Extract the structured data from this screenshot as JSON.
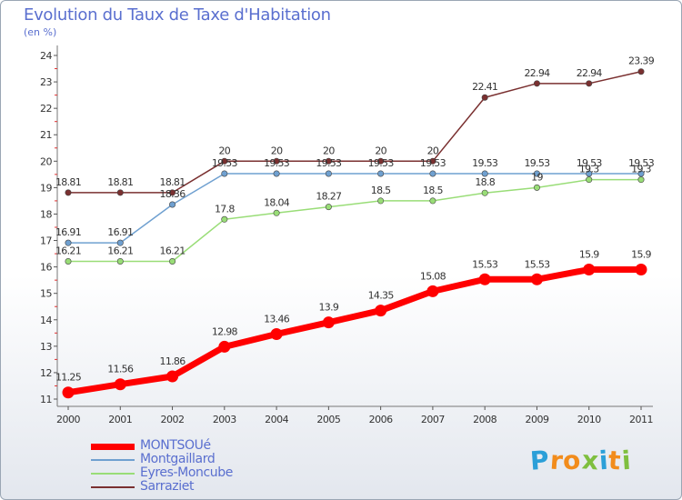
{
  "chart_data": {
    "type": "line",
    "title": "Evolution du Taux de Taxe d'Habitation",
    "subtitle": "(en %)",
    "xlabel": "",
    "ylabel": "",
    "x": [
      "2000",
      "2001",
      "2002",
      "2003",
      "2004",
      "2005",
      "2006",
      "2007",
      "2008",
      "2009",
      "2010",
      "2011"
    ],
    "ylim": [
      11,
      24
    ],
    "yticks": [
      11,
      12,
      13,
      14,
      15,
      16,
      17,
      18,
      19,
      20,
      21,
      22,
      23,
      24
    ],
    "grid": false,
    "legend_position": "bottom-left",
    "series": [
      {
        "name": "MONTSOUé",
        "color": "#ff0000",
        "values": [
          11.25,
          11.56,
          11.86,
          12.98,
          13.46,
          13.9,
          14.35,
          15.08,
          15.53,
          15.53,
          15.9,
          15.9
        ],
        "labels": [
          "11.25",
          "11.56",
          "11.86",
          "12.98",
          "13.46",
          "13.9",
          "14.35",
          "15.08",
          "15.53",
          "15.53",
          "15.9",
          "15.9"
        ]
      },
      {
        "name": "Montgaillard",
        "color": "#6fa0d0",
        "values": [
          16.91,
          16.91,
          18.36,
          19.53,
          19.53,
          19.53,
          19.53,
          19.53,
          19.53,
          19.53,
          19.53,
          19.53
        ],
        "labels": [
          "16.91",
          "16.91",
          "18.36",
          "19.53",
          "19.53",
          "19.53",
          "19.53",
          "19.53",
          "19.53",
          "19.53",
          "19.53",
          "19.53"
        ]
      },
      {
        "name": "Eyres-Moncube",
        "color": "#99dd77",
        "values": [
          16.21,
          16.21,
          16.21,
          17.8,
          18.04,
          18.27,
          18.5,
          18.5,
          18.8,
          19,
          19.3,
          19.3
        ],
        "labels": [
          "16.21",
          "16.21",
          "16.21",
          "17.8",
          "18.04",
          "18.27",
          "18.5",
          "18.5",
          "18.8",
          "19",
          "19.3",
          "19.3"
        ]
      },
      {
        "name": "Sarraziet",
        "color": "#7a3030",
        "values": [
          18.81,
          18.81,
          18.81,
          20,
          20,
          20,
          20,
          20,
          22.41,
          22.94,
          22.94,
          23.39
        ],
        "labels": [
          "18.81",
          "18.81",
          "18.81",
          "20",
          "20",
          "20",
          "20",
          "20",
          "22.41",
          "22.94",
          "22.94",
          "23.39"
        ]
      }
    ]
  },
  "logo": {
    "letters": [
      "P",
      "r",
      "o",
      "x",
      "i",
      "t",
      "i"
    ],
    "colors": [
      "#2b9fd8",
      "#f28c1c",
      "#f28c1c",
      "#7fbf3f",
      "#2b9fd8",
      "#f28c1c",
      "#7fbf3f"
    ]
  }
}
